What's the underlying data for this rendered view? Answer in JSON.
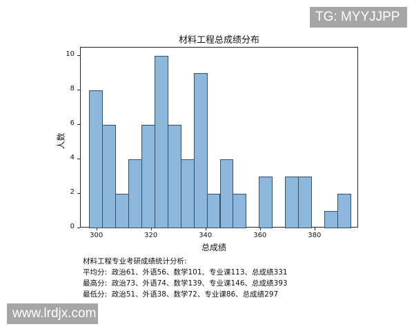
{
  "watermarks": {
    "top_right": "TG: MYYJJPP",
    "bottom_left": "www.lrdjx.com"
  },
  "chart_data": {
    "type": "bar",
    "title": "材料工程总成绩分布",
    "xlabel": "总成绩",
    "ylabel": "人数",
    "bin_start": 297,
    "bin_width": 4.8,
    "bins": [
      297,
      301.8,
      306.6,
      311.4,
      316.2,
      321,
      325.8,
      330.6,
      335.4,
      340.2,
      345,
      349.8,
      354.6,
      359.4,
      364.2,
      369,
      373.8,
      378.6,
      383.4,
      388.2,
      393
    ],
    "values": [
      8,
      6,
      2,
      4,
      6,
      10,
      6,
      4,
      9,
      2,
      4,
      2,
      0,
      3,
      0,
      3,
      3,
      0,
      1,
      2
    ],
    "xlim": [
      294,
      396
    ],
    "ylim": [
      0,
      10.5
    ],
    "xticks": [
      300,
      320,
      340,
      360,
      380
    ],
    "yticks": [
      0,
      2,
      4,
      6,
      8,
      10
    ],
    "bar_color": "#8db8dc",
    "edge_color": "#33506b",
    "grid": false,
    "legend": null
  },
  "stats": {
    "heading": "材料工程专业考研成绩统计分析:",
    "rows": [
      {
        "label": "平均分:",
        "text": "政治61、外语56、数学101、专业课113、总成绩331"
      },
      {
        "label": "最高分:",
        "text": "政治73、外语74、数学139、专业课146、总成绩393"
      },
      {
        "label": "最低分:",
        "text": "政治51、外语38、数学72、专业课86、总成绩297"
      }
    ]
  }
}
